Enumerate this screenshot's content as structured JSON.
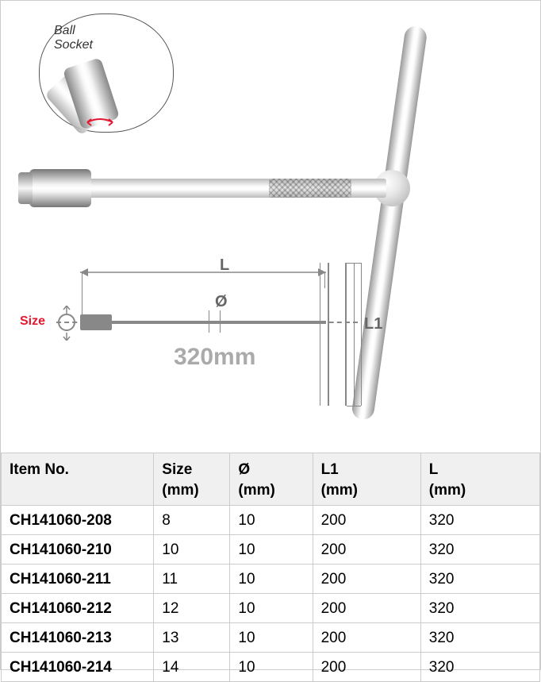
{
  "callout_label_line1": "Ball",
  "callout_label_line2": "Socket",
  "diagram": {
    "size_label": "Size",
    "L_label": "L",
    "L1_label": "L1",
    "phi_label": "Ø",
    "fixed_length": "320mm"
  },
  "table": {
    "columns": [
      {
        "label": "Item No.",
        "sub": ""
      },
      {
        "label": "Size",
        "sub": "(mm)"
      },
      {
        "label": "Ø",
        "sub": "(mm)"
      },
      {
        "label": "L1",
        "sub": "(mm)"
      },
      {
        "label": "L",
        "sub": "(mm)"
      }
    ],
    "rows": [
      {
        "item": "CH141060-208",
        "size": "8",
        "dia": "10",
        "l1": "200",
        "l": "320"
      },
      {
        "item": "CH141060-210",
        "size": "10",
        "dia": "10",
        "l1": "200",
        "l": "320"
      },
      {
        "item": "CH141060-211",
        "size": "11",
        "dia": "10",
        "l1": "200",
        "l": "320"
      },
      {
        "item": "CH141060-212",
        "size": "12",
        "dia": "10",
        "l1": "200",
        "l": "320"
      },
      {
        "item": "CH141060-213",
        "size": "13",
        "dia": "10",
        "l1": "200",
        "l": "320"
      },
      {
        "item": "CH141060-214",
        "size": "14",
        "dia": "10",
        "l1": "200",
        "l": "320"
      }
    ]
  }
}
